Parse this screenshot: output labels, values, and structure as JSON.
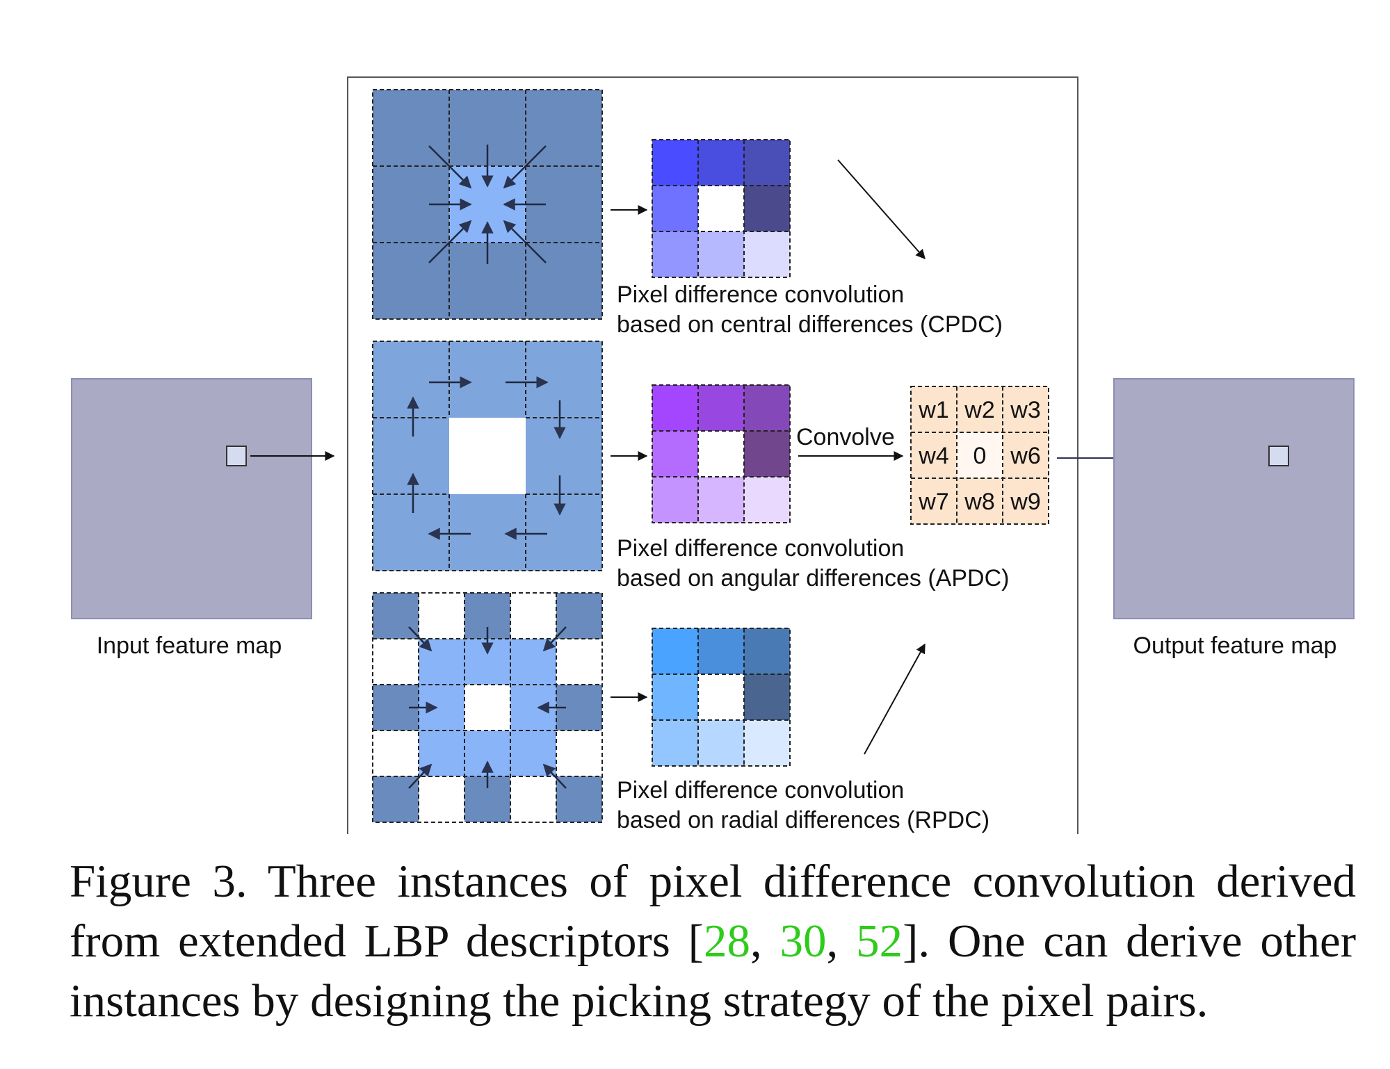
{
  "input_label": "Input feature map",
  "output_label": "Output feature map",
  "cpdc": {
    "line1": "Pixel difference convolution",
    "line2": "based on central differences (CPDC)",
    "kernel_colors": [
      "#4a4cff",
      "#4a4ee0",
      "#4a4fb8",
      "#6f72ff",
      "#ffffff",
      "#4a4a8c",
      "#9396ff",
      "#b7b9ff",
      "#dcdcff"
    ]
  },
  "apdc": {
    "line1": "Pixel difference convolution",
    "line2": "based on angular differences (APDC)",
    "kernel_colors": [
      "#a546ff",
      "#9848e0",
      "#8548b8",
      "#b46cff",
      "#ffffff",
      "#72468c",
      "#c493ff",
      "#d5b6ff",
      "#ead9ff"
    ]
  },
  "rpdc": {
    "line1": "Pixel difference convolution",
    "line2": "based on radial differences (RPDC)",
    "kernel_colors": [
      "#4aa3ff",
      "#4a8fdc",
      "#4a7ab4",
      "#6fb5ff",
      "#ffffff",
      "#4a6690",
      "#93c6ff",
      "#b6d7ff",
      "#d9e9ff"
    ]
  },
  "convolve_label": "Convolve",
  "weights": [
    "w1",
    "w2",
    "w3",
    "w4",
    "0",
    "w6",
    "w7",
    "w8",
    "w9"
  ],
  "colors": {
    "feature_map": "#aaaac4",
    "feature_map_border": "#8d8db3",
    "cell_marker": "#d6dcf0",
    "cpdc_outer": "#6a8bbd",
    "cpdc_center": "#8ab4f8",
    "apdc_ring": "#7fa6dc",
    "rpdc_outer": "#6a8bbd",
    "rpdc_inner": "#8ab4f8",
    "weight_bg": "#fce4cd",
    "weight_center_bg": "#fff7f0"
  },
  "caption": {
    "text_before": "Figure 3. Three instances of pixel difference convolution derived from extended LBP descriptors [",
    "ref1": "28",
    "sep1": ", ",
    "ref2": "30",
    "sep2": ", ",
    "ref3": "52",
    "text_after": "]. One can derive other instances by designing the picking strategy of the pixel pairs."
  }
}
